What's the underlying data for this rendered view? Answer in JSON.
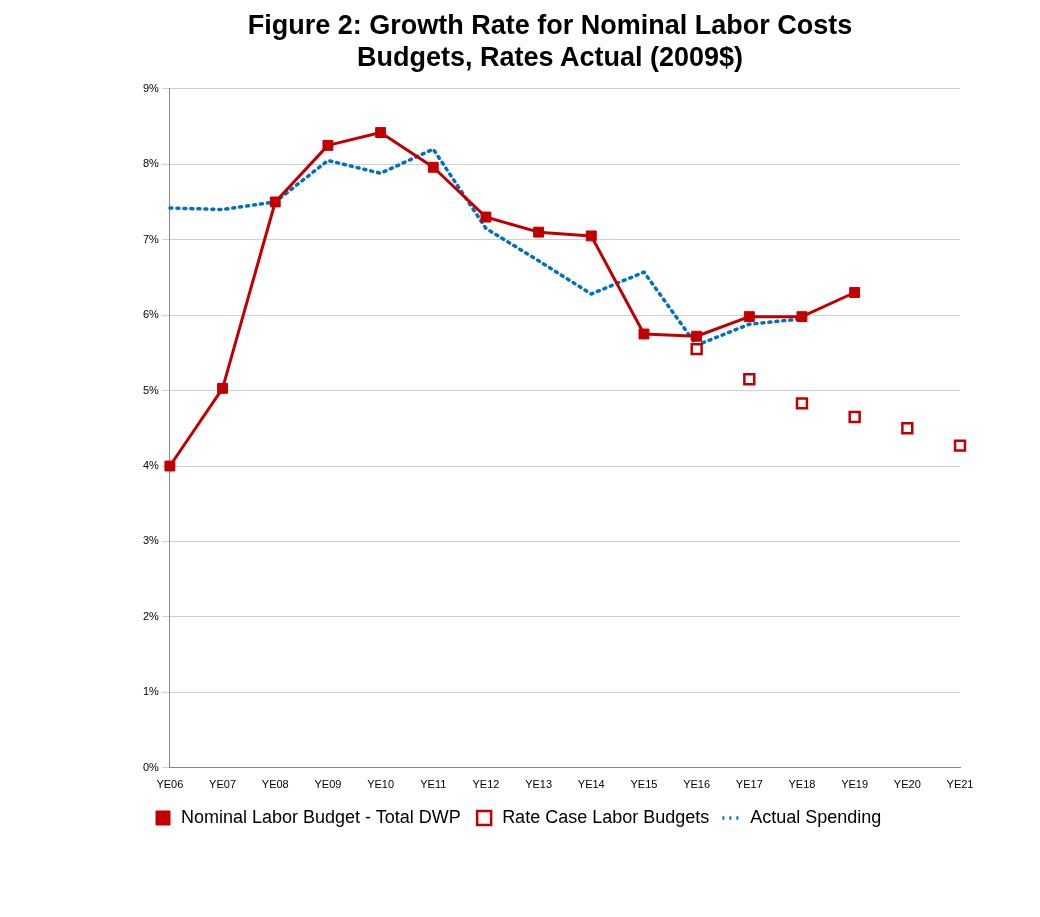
{
  "chart_data": {
    "type": "line",
    "title": "Figure 2: Growth Rate for Nominal Labor Costs\nBudgets, Rates Actual (2009$)",
    "categories": [
      "YE06",
      "YE07",
      "YE08",
      "YE09",
      "YE10",
      "YE11",
      "YE12",
      "YE13",
      "YE14",
      "YE15",
      "YE16",
      "YE17",
      "YE18",
      "YE19",
      "YE20",
      "YE21"
    ],
    "ylim": [
      0,
      9
    ],
    "yticks": [
      {
        "value": 0,
        "label": "0%"
      },
      {
        "value": 1,
        "label": "1%"
      },
      {
        "value": 2,
        "label": "2%"
      },
      {
        "value": 3,
        "label": "3%"
      },
      {
        "value": 4,
        "label": "4%"
      },
      {
        "value": 5,
        "label": "5%"
      },
      {
        "value": 6,
        "label": "6%"
      },
      {
        "value": 7,
        "label": "7%"
      },
      {
        "value": 8,
        "label": "8%"
      },
      {
        "value": 9,
        "label": "9%"
      }
    ],
    "grid": "y",
    "legend": "bottom",
    "series": [
      {
        "name": "Nominal Labor Budget - Total DWP",
        "type": "line",
        "color": "#c00000",
        "marker": "square",
        "line_style": "solid",
        "values": [
          4.0,
          5.03,
          7.5,
          8.25,
          8.42,
          7.96,
          7.3,
          7.1,
          7.05,
          5.75,
          5.72,
          5.98,
          5.98,
          6.3,
          null,
          null
        ]
      },
      {
        "name": "Rate Case Labor Budgets",
        "type": "scatter",
        "color": "#c00000",
        "marker": "square",
        "values": [
          null,
          null,
          null,
          null,
          null,
          null,
          null,
          null,
          null,
          null,
          5.55,
          5.15,
          4.83,
          4.65,
          4.5,
          4.27
        ]
      },
      {
        "name": "Actual Spending",
        "type": "line",
        "color": "#0070c0",
        "marker": "none",
        "line_style": "dotted",
        "values": [
          7.42,
          7.4,
          7.5,
          8.05,
          7.88,
          8.2,
          7.15,
          6.72,
          6.28,
          6.57,
          5.6,
          5.88,
          5.95,
          null,
          null,
          null
        ]
      }
    ]
  }
}
